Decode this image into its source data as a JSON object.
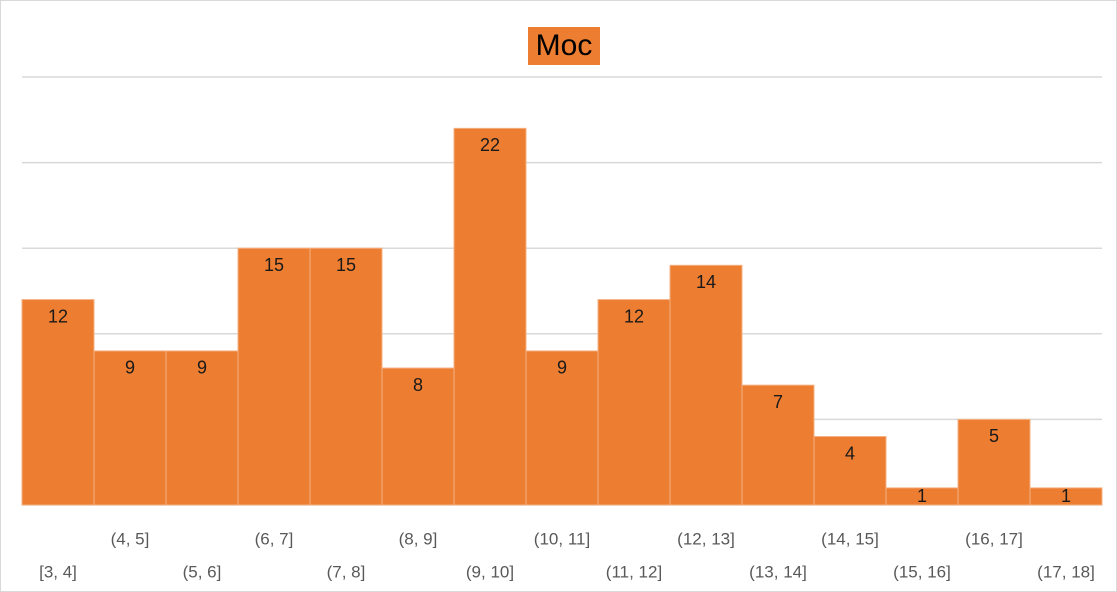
{
  "chart_data": {
    "type": "bar",
    "title": "Moc",
    "categories": [
      "[3, 4]",
      "(4, 5]",
      "(5, 6]",
      "(6, 7]",
      "(7, 8]",
      "(8, 9]",
      "(9, 10]",
      "(10, 11]",
      "(11, 12]",
      "(12, 13]",
      "(13, 14]",
      "(14, 15]",
      "(15, 16]",
      "(16, 17]",
      "(17, 18]"
    ],
    "values": [
      12,
      9,
      9,
      15,
      15,
      8,
      22,
      9,
      12,
      14,
      7,
      4,
      1,
      5,
      1
    ],
    "color": "#ed7d31",
    "ylim": [
      0,
      25
    ],
    "yticks": [
      0,
      5,
      10,
      15,
      20,
      25
    ],
    "grid": true
  }
}
